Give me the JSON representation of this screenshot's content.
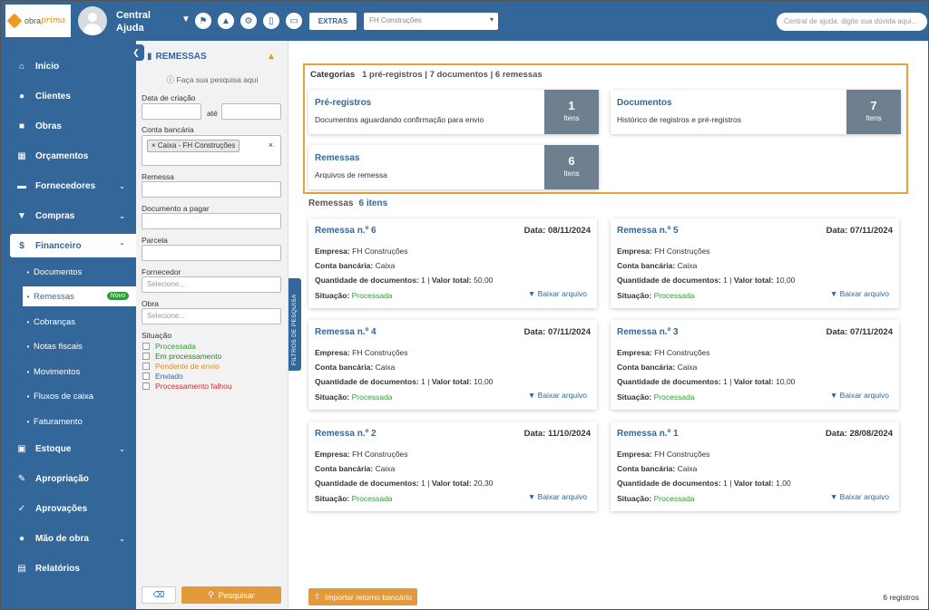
{
  "header": {
    "logo_text_1": "obra",
    "logo_text_2": "prima",
    "user_name": "Central Ajuda",
    "icons": [
      "flag-icon",
      "graduation-cap-icon",
      "gear-icon",
      "mobile-icon",
      "monitor-icon"
    ],
    "extras_label": "EXTRAS",
    "company_selected": "FH Construções",
    "help_search_placeholder": "Central de ajuda: digite sua dúvida aqui..."
  },
  "nav": {
    "items": [
      {
        "label": "Início",
        "icon": "home-icon"
      },
      {
        "label": "Clientes",
        "icon": "user-icon"
      },
      {
        "label": "Obras",
        "icon": "building-icon"
      },
      {
        "label": "Orçamentos",
        "icon": "calculator-icon"
      },
      {
        "label": "Fornecedores",
        "icon": "truck-icon"
      },
      {
        "label": "Compras",
        "icon": "cart-icon"
      },
      {
        "label": "Financeiro",
        "icon": "dollar-icon"
      },
      {
        "label": "Estoque",
        "icon": "box-icon"
      },
      {
        "label": "Apropriação",
        "icon": "edit-document-icon"
      },
      {
        "label": "Aprovações",
        "icon": "checklist-icon"
      },
      {
        "label": "Mão de obra",
        "icon": "workers-icon"
      },
      {
        "label": "Relatórios",
        "icon": "report-icon"
      }
    ],
    "financeiro_sub": [
      {
        "label": "Documentos"
      },
      {
        "label": "Remessas",
        "badge": "Novo"
      },
      {
        "label": "Cobranças"
      },
      {
        "label": "Notas fiscais"
      },
      {
        "label": "Movimentos"
      },
      {
        "label": "Fluxos de caixa"
      },
      {
        "label": "Faturamento"
      }
    ]
  },
  "filters": {
    "title": "REMESSAS",
    "hint": "Faça sua pesquisa aqui",
    "created_label": "Data de criação",
    "until_label": "até",
    "bank_label": "Conta bancária",
    "bank_tag": "× Caixa - FH Construções",
    "remessa_label": "Remessa",
    "doc_label": "Documento a pagar",
    "parcela_label": "Parcela",
    "fornecedor_label": "Fornecedor",
    "fornecedor_placeholder": "Selecione...",
    "obra_label": "Obra",
    "obra_placeholder": "Selecione...",
    "situacao_label": "Situação",
    "situacoes": [
      {
        "label": "Processada",
        "color": "#2e9d3a"
      },
      {
        "label": "Em processamento",
        "color": "#2e7d32"
      },
      {
        "label": "Pendente de envio",
        "color": "#e08a1a"
      },
      {
        "label": "Enviado",
        "color": "#336699"
      },
      {
        "label": "Processamento falhou",
        "color": "#d32f2f"
      }
    ],
    "search_label": "Pesquisar",
    "tab_label": "FILTROS DE PESQUISA"
  },
  "categories": {
    "heading": "Categorias",
    "summary": "1 pré-registros | 7 documentos | 6 remessas",
    "cards": [
      {
        "title": "Pré-registros",
        "desc": "Documentos aguardando confirmação para envio",
        "count": "1",
        "unit": "Itens"
      },
      {
        "title": "Documentos",
        "desc": "Histórico de registros e pré-registros",
        "count": "7",
        "unit": "Itens"
      },
      {
        "title": "Remessas",
        "desc": "Arquivos de remessa",
        "count": "6",
        "unit": "Itens"
      }
    ]
  },
  "remessas": {
    "heading": "Remessas",
    "count_text": "6 itens",
    "labels": {
      "empresa": "Empresa:",
      "conta": "Conta bancária:",
      "qtd": "Quantidade de documentos:",
      "total": "Valor total:",
      "situacao": "Situação:",
      "download": "Baixar arquivo"
    },
    "items": [
      {
        "title": "Remessa n.º 6",
        "date": "Data: 08/11/2024",
        "empresa": "FH Construções",
        "conta": "Caixa",
        "qtd": "1",
        "total": "50,00",
        "situacao": "Processada"
      },
      {
        "title": "Remessa n.º 5",
        "date": "Data: 07/11/2024",
        "empresa": "FH Construções",
        "conta": "Caixa",
        "qtd": "1",
        "total": "10,00",
        "situacao": "Processada"
      },
      {
        "title": "Remessa n.º 4",
        "date": "Data: 07/11/2024",
        "empresa": "FH Construções",
        "conta": "Caixa",
        "qtd": "1",
        "total": "10,00",
        "situacao": "Processada"
      },
      {
        "title": "Remessa n.º 3",
        "date": "Data: 07/11/2024",
        "empresa": "FH Construções",
        "conta": "Caixa",
        "qtd": "1",
        "total": "10,00",
        "situacao": "Processada"
      },
      {
        "title": "Remessa n.º 2",
        "date": "Data: 11/10/2024",
        "empresa": "FH Construções",
        "conta": "Caixa",
        "qtd": "1",
        "total": "20,30",
        "situacao": "Processada"
      },
      {
        "title": "Remessa n.º 1",
        "date": "Data: 28/08/2024",
        "empresa": "FH Construções",
        "conta": "Caixa",
        "qtd": "1",
        "total": "1,00",
        "situacao": "Processada"
      }
    ]
  },
  "footer": {
    "import_label": "Importar retorno bancário",
    "records": "6 registros"
  }
}
